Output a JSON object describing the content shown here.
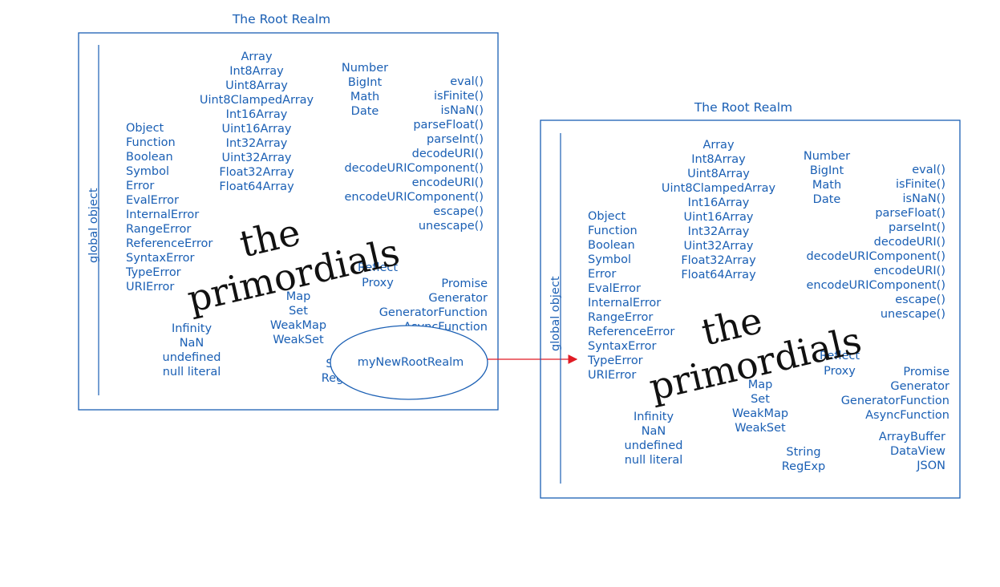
{
  "realm_title": "The Root Realm",
  "global_object_label": "global object",
  "primordials": {
    "line1": "the",
    "line2": "primordials"
  },
  "new_realm_label": "myNewRootRealm",
  "colors": {
    "ink": "#1a5fb4",
    "arrow": "#e01b24",
    "headline": "#111111"
  },
  "col_typed_arrays": [
    "Array",
    "Int8Array",
    "Uint8Array",
    "Uint8ClampedArray",
    "Int16Array",
    "Uint16Array",
    "Int32Array",
    "Uint32Array",
    "Float32Array",
    "Float64Array"
  ],
  "col_number": [
    "Number",
    "BigInt",
    "Math",
    "Date"
  ],
  "col_functions": [
    "eval()",
    "isFinite()",
    "isNaN()",
    "parseFloat()",
    "parseInt()",
    "decodeURI()",
    "decodeURIComponent()",
    "encodeURI()",
    "encodeURIComponent()",
    "escape()",
    "unescape()"
  ],
  "col_errors": [
    "Object",
    "Function",
    "Boolean",
    "Symbol",
    "Error",
    "EvalError",
    "InternalError",
    "RangeError",
    "ReferenceError",
    "SyntaxError",
    "TypeError",
    "URIError"
  ],
  "col_reflect": [
    "Reflect",
    "Proxy"
  ],
  "col_promise": [
    "Promise",
    "Generator",
    "GeneratorFunction",
    "AsyncFunction"
  ],
  "col_buffers": [
    "ArrayBuffer",
    "DataView",
    "JSON"
  ],
  "col_collections": [
    "Map",
    "Set",
    "WeakMap",
    "WeakSet"
  ],
  "col_values": [
    "Infinity",
    "NaN",
    "undefined",
    "null literal"
  ],
  "col_string": [
    "String",
    "RegExp"
  ]
}
